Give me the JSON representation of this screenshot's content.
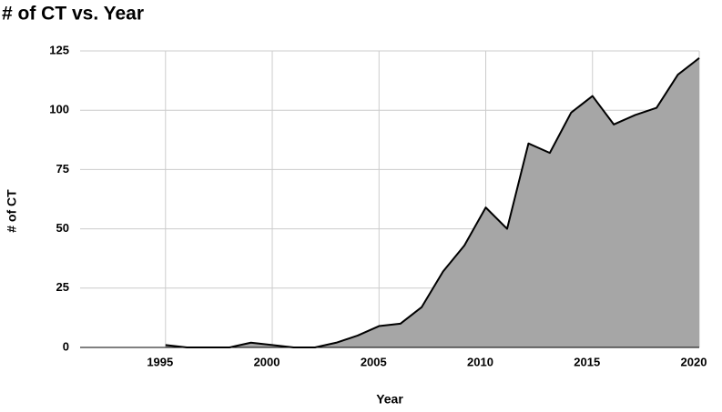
{
  "chart_data": {
    "type": "area",
    "title": "# of CT vs. Year",
    "x_label": "Year",
    "y_label": "# of CT",
    "x": [
      1995,
      1996,
      1997,
      1998,
      1999,
      2000,
      2001,
      2002,
      2003,
      2004,
      2005,
      2006,
      2007,
      2008,
      2009,
      2010,
      2011,
      2012,
      2013,
      2014,
      2015,
      2016,
      2017,
      2018,
      2019,
      2020
    ],
    "values": [
      1,
      0,
      0,
      0,
      2,
      1,
      0,
      0,
      2,
      5,
      9,
      10,
      17,
      32,
      43,
      59,
      50,
      86,
      82,
      99,
      106,
      94,
      98,
      101,
      115,
      122
    ],
    "color": "#a6a6a6",
    "line_color": "#000000",
    "xlim": [
      1991,
      2020
    ],
    "xticks": [
      1995,
      2000,
      2005,
      2010,
      2015,
      2020
    ],
    "ylim": [
      0,
      125
    ],
    "yticks": [
      0,
      25,
      50,
      75,
      100,
      125
    ],
    "grid": true
  }
}
